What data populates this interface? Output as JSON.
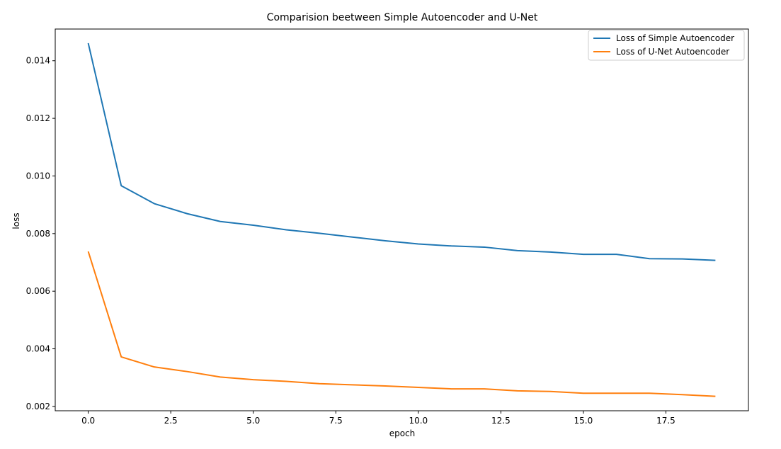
{
  "chart_data": {
    "type": "line",
    "title": "Comparision beetween Simple Autoencoder and U-Net",
    "xlabel": "epoch",
    "ylabel": "loss",
    "xlim": [
      -1.0,
      20.0
    ],
    "ylim": [
      0.00185,
      0.0151
    ],
    "xticks": [
      0.0,
      2.5,
      5.0,
      7.5,
      10.0,
      12.5,
      15.0,
      17.5
    ],
    "xtick_labels": [
      "0.0",
      "2.5",
      "5.0",
      "7.5",
      "10.0",
      "12.5",
      "15.0",
      "17.5"
    ],
    "yticks": [
      0.002,
      0.004,
      0.006,
      0.008,
      0.01,
      0.012,
      0.014
    ],
    "ytick_labels": [
      "0.002",
      "0.004",
      "0.006",
      "0.008",
      "0.010",
      "0.012",
      "0.014"
    ],
    "grid": false,
    "legend_position": "top-right",
    "x": [
      0,
      1,
      2,
      3,
      4,
      5,
      6,
      7,
      8,
      9,
      10,
      11,
      12,
      13,
      14,
      15,
      16,
      17,
      18,
      19
    ],
    "series": [
      {
        "name": "Loss of Simple Autoencoder",
        "color": "#1f77b4",
        "values": [
          0.01461,
          0.00966,
          0.00904,
          0.00869,
          0.00842,
          0.00829,
          0.00813,
          0.00801,
          0.00788,
          0.00775,
          0.00764,
          0.00757,
          0.00753,
          0.00741,
          0.00736,
          0.00728,
          0.00728,
          0.00713,
          0.00712,
          0.00707
        ]
      },
      {
        "name": "Loss of U-Net Autoencoder",
        "color": "#ff7f0e",
        "values": [
          0.00738,
          0.00372,
          0.00337,
          0.00321,
          0.00302,
          0.00293,
          0.00287,
          0.00279,
          0.00275,
          0.00271,
          0.00266,
          0.00261,
          0.00261,
          0.00254,
          0.00252,
          0.00246,
          0.00246,
          0.00246,
          0.00241,
          0.00235
        ]
      }
    ]
  }
}
